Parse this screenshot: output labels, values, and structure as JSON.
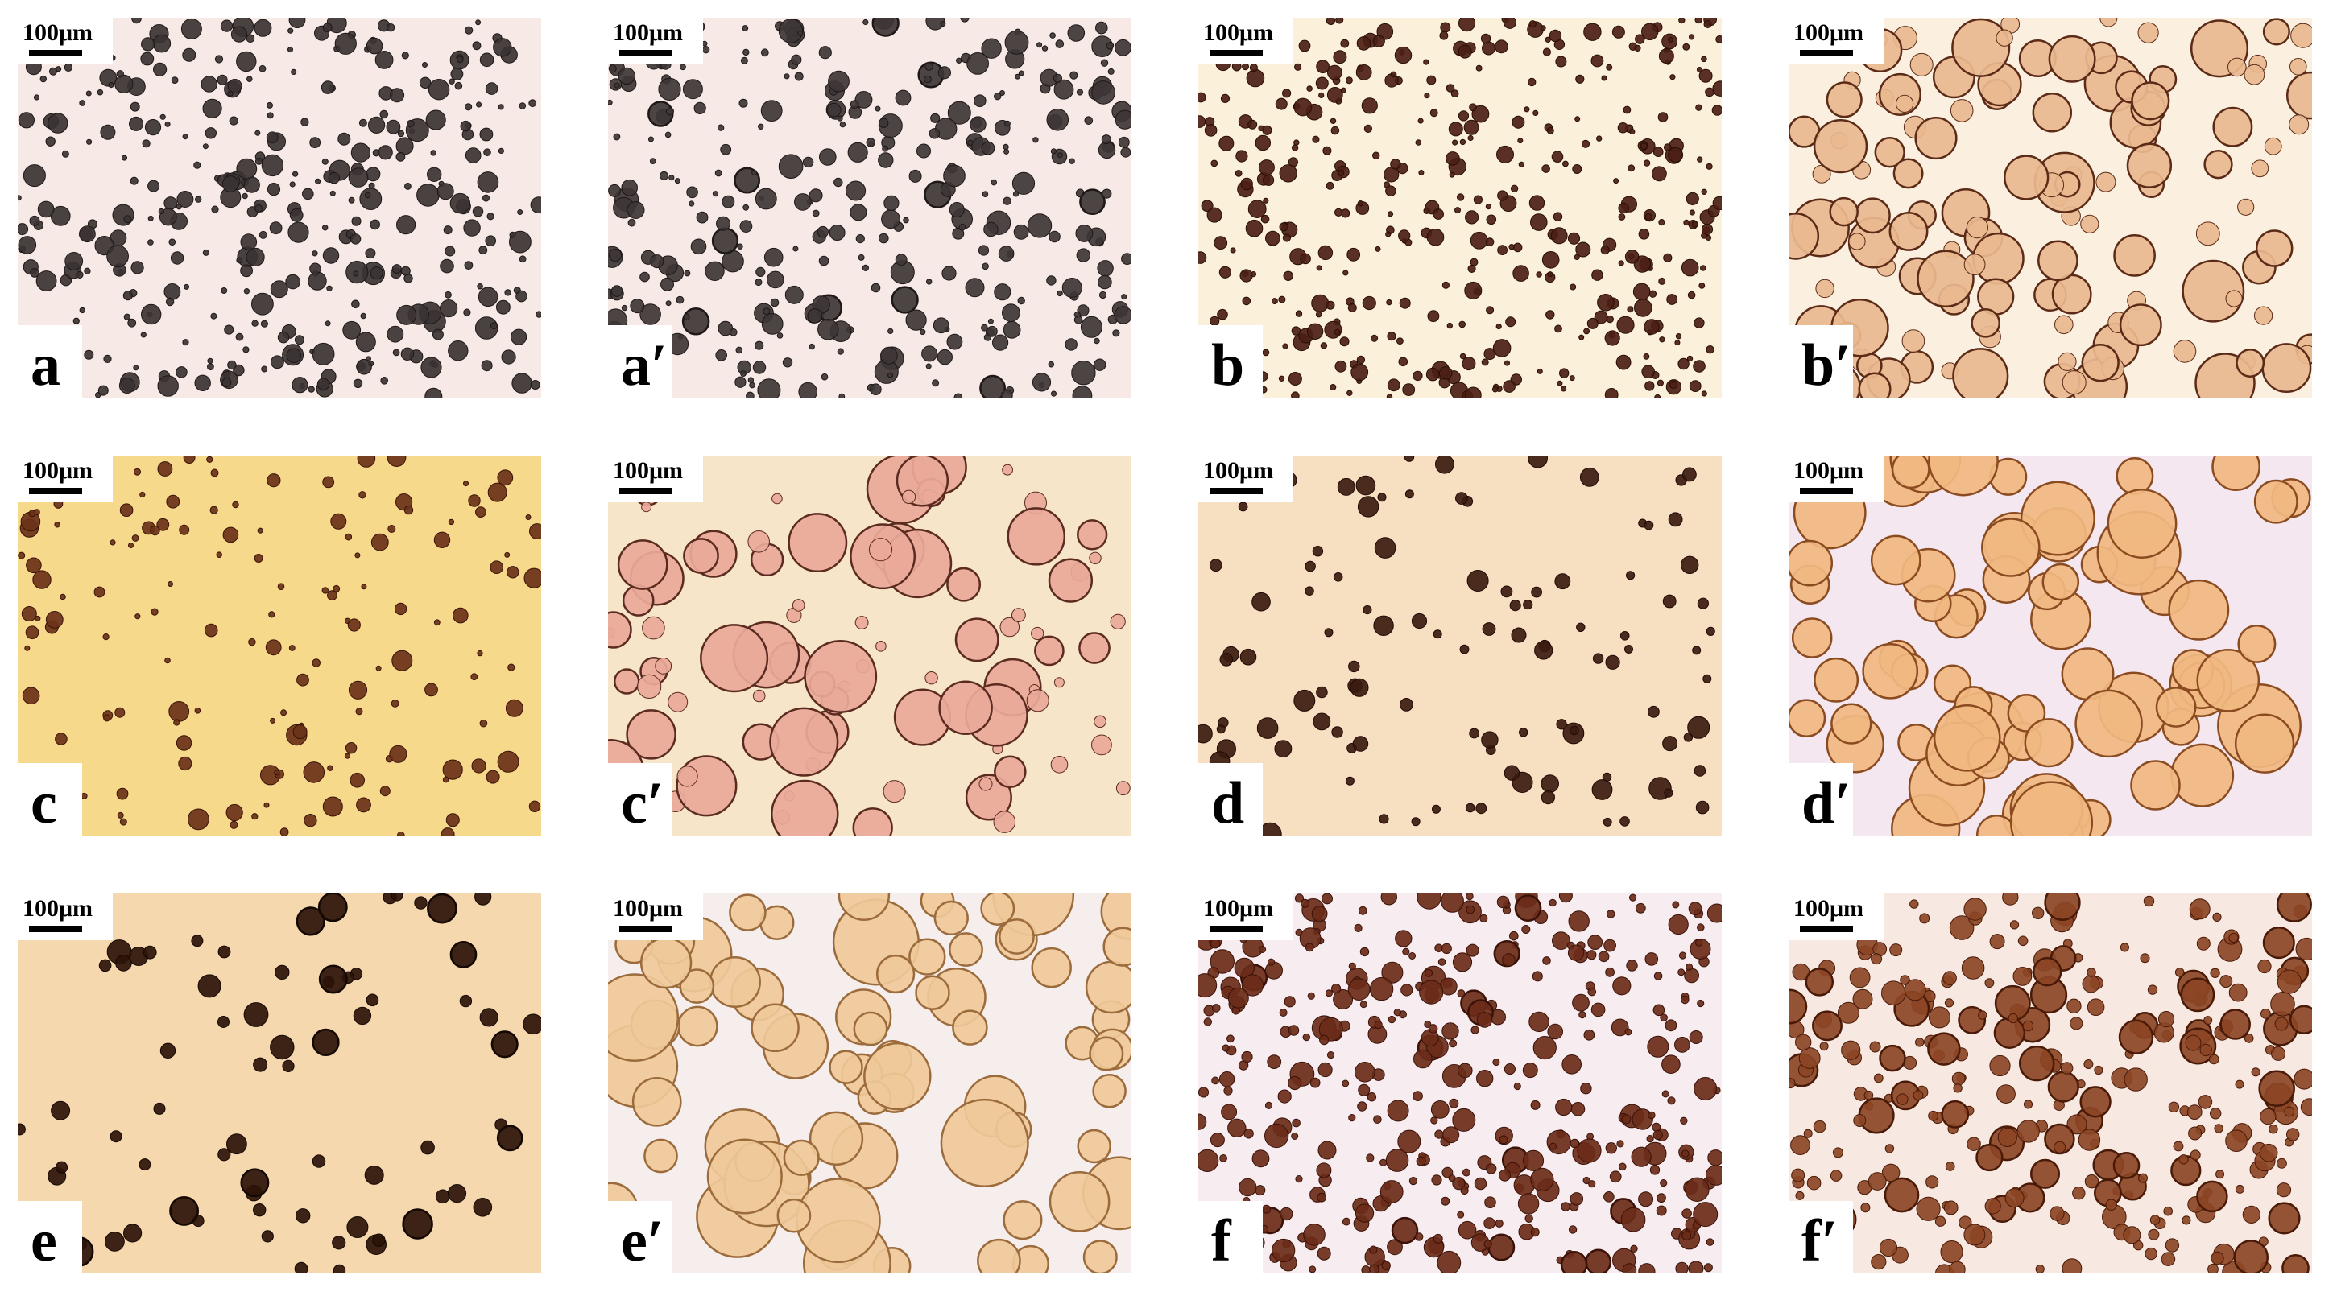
{
  "panels": [
    {
      "label": "a",
      "scale": "100μm"
    },
    {
      "label": "a′",
      "scale": "100μm"
    },
    {
      "label": "b",
      "scale": "100μm"
    },
    {
      "label": "b′",
      "scale": "100μm"
    },
    {
      "label": "c",
      "scale": "100μm"
    },
    {
      "label": "c′",
      "scale": "100μm"
    },
    {
      "label": "d",
      "scale": "100μm"
    },
    {
      "label": "d′",
      "scale": "100μm"
    },
    {
      "label": "e",
      "scale": "100μm"
    },
    {
      "label": "e′",
      "scale": "100μm"
    },
    {
      "label": "f",
      "scale": "100μm"
    },
    {
      "label": "f′",
      "scale": "100μm"
    }
  ]
}
